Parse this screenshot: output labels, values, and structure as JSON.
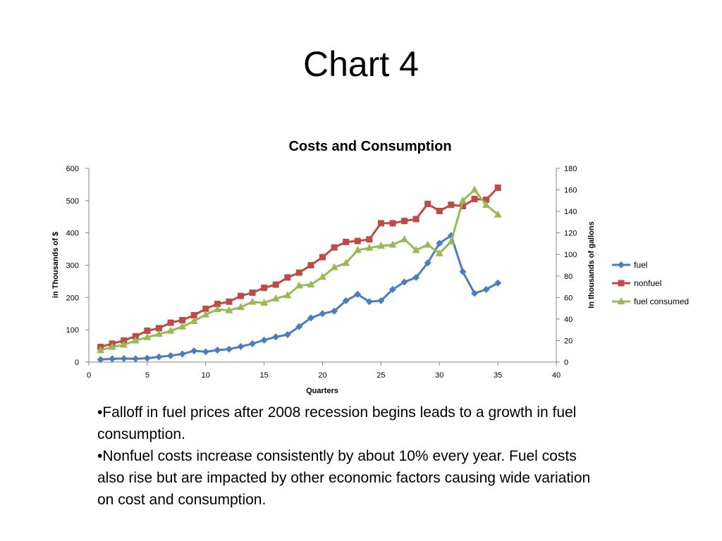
{
  "slide": {
    "title": "Chart 4",
    "bullets": [
      "•Falloff in fuel prices after 2008 recession begins leads to a growth in fuel consumption.",
      "•Nonfuel costs increase consistently by about 10% every year. Fuel costs also rise but are impacted by other economic factors causing wide variation on cost and consumption."
    ]
  },
  "chart_data": {
    "type": "line",
    "title": "Costs and Consumption",
    "xlabel": "Quarters",
    "ylabel": "in Thousands of $",
    "y2label": "In thousands of gallons",
    "xlim": [
      0,
      40
    ],
    "ylim": [
      0,
      600
    ],
    "y2lim": [
      0,
      180
    ],
    "xticks": [
      "0",
      "5",
      "10",
      "15",
      "20",
      "25",
      "30",
      "35",
      "40"
    ],
    "yticks": [
      "0",
      "100",
      "200",
      "300",
      "400",
      "500",
      "600"
    ],
    "y2ticks": [
      "0",
      "20",
      "40",
      "60",
      "80",
      "100",
      "120",
      "140",
      "160",
      "180"
    ],
    "grid": false,
    "legend_position": "right",
    "x": [
      1,
      2,
      3,
      4,
      5,
      6,
      7,
      8,
      9,
      10,
      11,
      12,
      13,
      14,
      15,
      16,
      17,
      18,
      19,
      20,
      21,
      22,
      23,
      24,
      25,
      26,
      27,
      28,
      29,
      30,
      31,
      32,
      33,
      34,
      35
    ],
    "series": [
      {
        "name": "fuel",
        "axis": "left",
        "color": "#4a7ebb",
        "marker": "diamond",
        "values": [
          8,
          10,
          11,
          10,
          12,
          16,
          20,
          25,
          35,
          32,
          37,
          40,
          48,
          57,
          68,
          78,
          85,
          110,
          137,
          150,
          158,
          190,
          210,
          187,
          190,
          225,
          248,
          262,
          307,
          368,
          392,
          280,
          213,
          225,
          245
        ]
      },
      {
        "name": "nonfuel",
        "axis": "left",
        "color": "#be4b48",
        "marker": "square",
        "values": [
          47,
          57,
          67,
          80,
          97,
          105,
          122,
          130,
          145,
          165,
          180,
          187,
          205,
          215,
          230,
          240,
          262,
          277,
          300,
          325,
          355,
          372,
          375,
          380,
          430,
          430,
          437,
          443,
          490,
          468,
          487,
          483,
          505,
          503,
          540
        ]
      },
      {
        "name": "fuel consumed",
        "axis": "right",
        "color": "#98b954",
        "marker": "triangle",
        "values": [
          11,
          14,
          16,
          20,
          23,
          26,
          29,
          33,
          38,
          44,
          49,
          48,
          51,
          56,
          55,
          59,
          62,
          71,
          72,
          79,
          88,
          92,
          104,
          106,
          108,
          109,
          114,
          104,
          109,
          101,
          112,
          150,
          160,
          146,
          137
        ]
      }
    ]
  }
}
